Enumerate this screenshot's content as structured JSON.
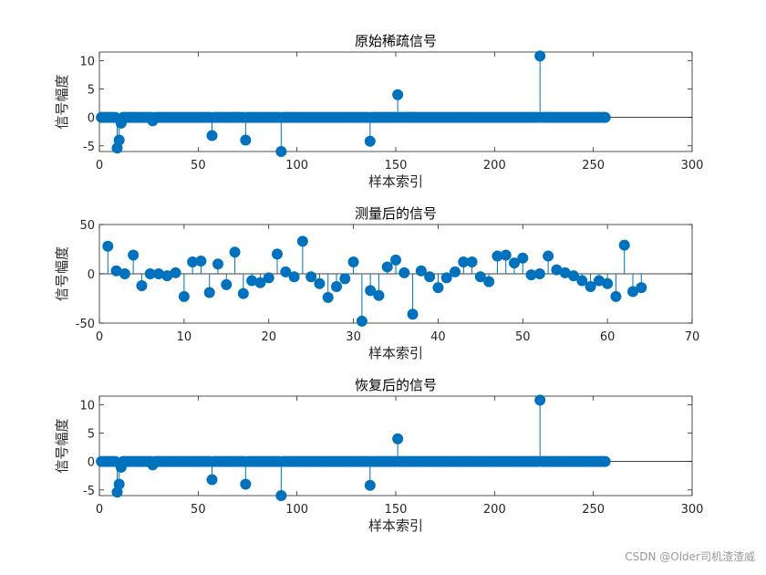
{
  "watermark": "CSDN @Older司机渣渣威",
  "colors": {
    "stem": "#0072BD",
    "axis": "#262626",
    "baseline": "#000000"
  },
  "chart_data": [
    {
      "type": "stem",
      "title": "原始稀疏信号",
      "xlabel": "样本索引",
      "ylabel": "信号幅度",
      "xlim": [
        0,
        300
      ],
      "ylim": [
        -6,
        11.5
      ],
      "xticks": [
        0,
        50,
        100,
        150,
        200,
        250,
        300
      ],
      "yticks": [
        -5,
        0,
        5,
        10
      ],
      "n": 256,
      "nonzero": [
        {
          "x": 9,
          "y": -5.4
        },
        {
          "x": 10,
          "y": -4.0
        },
        {
          "x": 11,
          "y": -1.0
        },
        {
          "x": 27,
          "y": -0.6
        },
        {
          "x": 57,
          "y": -3.2
        },
        {
          "x": 74,
          "y": -4.0
        },
        {
          "x": 92,
          "y": -6.0
        },
        {
          "x": 137,
          "y": -4.2
        },
        {
          "x": 151,
          "y": 4.0
        },
        {
          "x": 223,
          "y": 10.8
        }
      ]
    },
    {
      "type": "stem",
      "title": "测量后的信号",
      "xlabel": "样本索引",
      "ylabel": "信号幅度",
      "xlim": [
        0,
        70
      ],
      "ylim": [
        -50,
        50
      ],
      "xticks": [
        0,
        10,
        20,
        30,
        40,
        50,
        60,
        70
      ],
      "yticks": [
        -50,
        0,
        50
      ],
      "values": [
        28,
        3,
        0,
        19,
        -12,
        0,
        0,
        -2,
        1,
        -23,
        12,
        13,
        -19,
        10,
        -11,
        22,
        -20,
        -7,
        -9,
        -4,
        20,
        2,
        -3,
        33,
        -3,
        -10,
        -24,
        -13,
        -5,
        12,
        -48,
        -17,
        -22,
        7,
        14,
        1,
        -41,
        3,
        -3,
        -14,
        -4,
        2,
        12,
        12,
        -3,
        -8,
        18,
        19,
        11,
        16,
        -1,
        0,
        18,
        4,
        1,
        -2,
        -7,
        -13,
        -7,
        -10,
        -23,
        29,
        -18,
        -14
      ]
    },
    {
      "type": "stem",
      "title": "恢复后的信号",
      "xlabel": "样本索引",
      "ylabel": "信号幅度",
      "xlim": [
        0,
        300
      ],
      "ylim": [
        -6,
        11.5
      ],
      "xticks": [
        0,
        50,
        100,
        150,
        200,
        250,
        300
      ],
      "yticks": [
        -5,
        0,
        5,
        10
      ],
      "n": 256,
      "nonzero": [
        {
          "x": 9,
          "y": -5.4
        },
        {
          "x": 10,
          "y": -4.0
        },
        {
          "x": 11,
          "y": -1.0
        },
        {
          "x": 27,
          "y": -0.6
        },
        {
          "x": 57,
          "y": -3.2
        },
        {
          "x": 74,
          "y": -4.0
        },
        {
          "x": 92,
          "y": -6.0
        },
        {
          "x": 137,
          "y": -4.2
        },
        {
          "x": 151,
          "y": 4.0
        },
        {
          "x": 223,
          "y": 10.8
        }
      ]
    }
  ]
}
